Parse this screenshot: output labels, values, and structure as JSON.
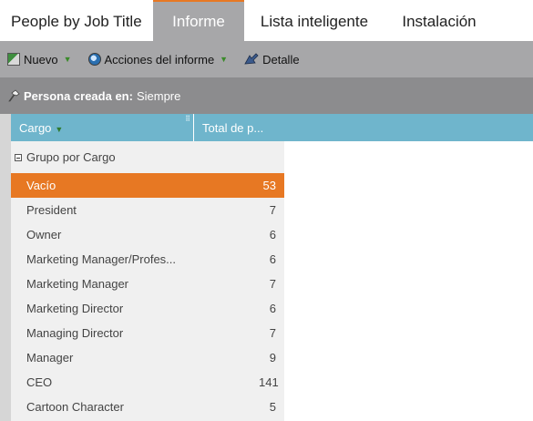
{
  "tabs": [
    {
      "label": "People by Job Title",
      "active": false
    },
    {
      "label": "Informe",
      "active": true
    },
    {
      "label": "Lista inteligente",
      "active": false
    },
    {
      "label": "Instalación",
      "active": false
    }
  ],
  "toolbar": {
    "new_label": "Nuevo",
    "actions_label": "Acciones del informe",
    "detail_label": "Detalle"
  },
  "filter": {
    "label": "Persona creada en:",
    "value": "Siempre"
  },
  "grid": {
    "columns": [
      "Cargo",
      "Total de p..."
    ],
    "group_label": "Grupo por Cargo",
    "rows": [
      {
        "cargo": "Vacío",
        "total": "53"
      },
      {
        "cargo": "President",
        "total": "7"
      },
      {
        "cargo": "Owner",
        "total": "6"
      },
      {
        "cargo": "Marketing Manager/Profes...",
        "total": "6"
      },
      {
        "cargo": "Marketing Manager",
        "total": "7"
      },
      {
        "cargo": "Marketing Director",
        "total": "6"
      },
      {
        "cargo": "Managing Director",
        "total": "7"
      },
      {
        "cargo": "Manager",
        "total": "9"
      },
      {
        "cargo": "CEO",
        "total": "141"
      },
      {
        "cargo": "Cartoon Character",
        "total": "5"
      }
    ],
    "selected_index": 0
  },
  "colors": {
    "accent_orange": "#e77823",
    "header_blue": "#6fb5cc",
    "toolbar_gray": "#a7a7a9",
    "filterbar_gray": "#8c8c8e"
  },
  "icons": {
    "new": "new-report-icon",
    "actions": "report-actions-icon",
    "detail": "detail-drill-icon",
    "filter": "filter-pin-icon",
    "group_toggle": "collapse-minus-icon",
    "dropdown": "chevron-down-icon"
  }
}
